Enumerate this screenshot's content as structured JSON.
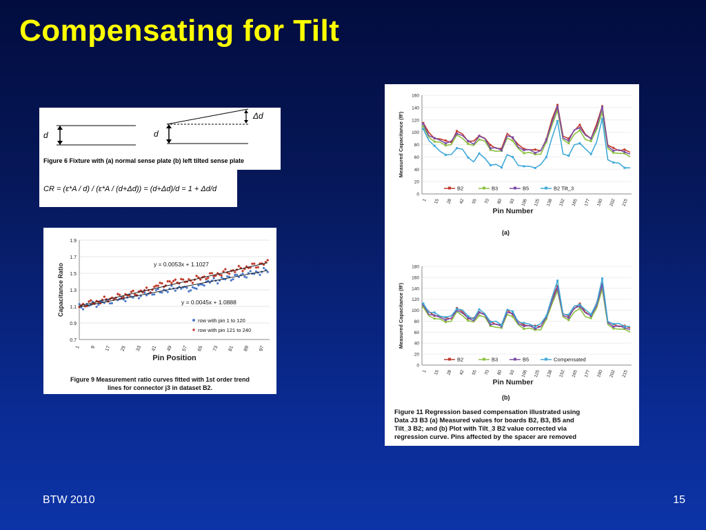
{
  "slide": {
    "title": "Compensating for Tilt",
    "footer_left": "BTW 2010",
    "page_number": "15"
  },
  "figure6": {
    "caption": "Figure 6 Fixture with (a) normal sense plate (b) left tilted sense plate",
    "label_d": "d",
    "label_delta_d": "Δd"
  },
  "formula": {
    "lhs": "CR = (",
    "text": "CR = (ε*A / d) / (ε*A / (d+Δd)) = (d+Δd)/d = 1 + Δd/d"
  },
  "figure9": {
    "caption_line1": "Figure 9 Measurement ratio curves fitted with 1st order trend",
    "caption_line2": "lines for connector j3 in dataset B2.",
    "eq1": "y = 0.0053x + 1.1027",
    "eq2": "y = 0.0045x + 1.0888"
  },
  "figure11": {
    "label_a": "(a)",
    "label_b": "(b)",
    "caption_lines": [
      "Figure 11 Regression based compensation illustrated using",
      "Data J3 B3 (a) Measured values for boards B2, B3, B5 and",
      "Tilt_3 B2;  and (b) Plot with Tilt_3 B2 value corrected via",
      "regression curve.  Pins affected by the spacer are removed"
    ]
  },
  "chart_data": [
    {
      "id": "ratio",
      "type": "scatter",
      "title": "",
      "xlabel": "Pin Position",
      "ylabel": "Capacitance Ratio",
      "ylim": [
        0.7,
        1.9
      ],
      "yticks": [
        "0.7",
        "0.9",
        "1.1",
        "1.3",
        "1.5",
        "1.7",
        "1.9"
      ],
      "xticks": [
        "1",
        "9",
        "17",
        "25",
        "33",
        "41",
        "49",
        "57",
        "65",
        "73",
        "81",
        "89",
        "97"
      ],
      "xlim": [
        1,
        100
      ],
      "legend": "bottom-right",
      "series": [
        {
          "name": "row with pin 1 to 120",
          "color": "#4a78c8",
          "slope": 0.0045,
          "intercept": 1.0888
        },
        {
          "name": "row with pin 121 to 240",
          "color": "#c0392b",
          "slope": 0.0053,
          "intercept": 1.1027
        }
      ]
    },
    {
      "id": "measured_a",
      "type": "line",
      "xlabel": "Pin Number",
      "ylabel": "Measured Capacitance (fF)",
      "ylim": [
        0,
        160
      ],
      "yticks": [
        "0",
        "20",
        "40",
        "60",
        "80",
        "100",
        "120",
        "140",
        "160"
      ],
      "xticks": [
        "1",
        "15",
        "28",
        "42",
        "55",
        "70",
        "80",
        "93",
        "106",
        "125",
        "138",
        "152",
        "165",
        "177",
        "190",
        "202",
        "215"
      ],
      "legend": "bottom",
      "series": [
        {
          "name": "B2",
          "color": "#c0392b",
          "base": [
            115,
            98,
            92,
            88,
            86,
            85,
            100,
            98,
            86,
            84,
            96,
            90,
            78,
            76,
            72,
            98,
            92,
            78,
            74,
            72,
            70,
            72,
            88,
            120,
            146,
            92,
            90,
            104,
            110,
            98,
            90,
            112,
            144,
            78,
            74,
            72,
            70,
            68
          ]
        },
        {
          "name": "B3",
          "color": "#8cbf3f",
          "base": [
            108,
            92,
            86,
            82,
            80,
            80,
            94,
            92,
            80,
            78,
            90,
            84,
            72,
            70,
            68,
            92,
            86,
            72,
            68,
            66,
            64,
            66,
            82,
            112,
            136,
            86,
            84,
            96,
            102,
            90,
            84,
            104,
            134,
            72,
            68,
            66,
            64,
            62
          ]
        },
        {
          "name": "B5",
          "color": "#7b4fa8",
          "base": [
            112,
            96,
            90,
            86,
            84,
            84,
            98,
            96,
            84,
            82,
            94,
            88,
            76,
            74,
            70,
            96,
            90,
            76,
            72,
            70,
            68,
            70,
            86,
            118,
            140,
            90,
            88,
            102,
            108,
            96,
            88,
            110,
            140,
            76,
            72,
            70,
            68,
            66
          ]
        },
        {
          "name": "B2 Tilt_3",
          "color": "#3fa9d8",
          "base": [
            105,
            88,
            76,
            70,
            64,
            62,
            76,
            72,
            58,
            54,
            64,
            58,
            48,
            46,
            44,
            64,
            58,
            48,
            44,
            44,
            44,
            46,
            60,
            92,
            116,
            66,
            62,
            78,
            84,
            72,
            64,
            86,
            120,
            56,
            52,
            48,
            44,
            42
          ]
        }
      ]
    },
    {
      "id": "measured_b",
      "type": "line",
      "xlabel": "Pin Number",
      "ylabel": "Measured Capacitance (fF)",
      "ylim": [
        0,
        180
      ],
      "yticks": [
        "0",
        "20",
        "40",
        "60",
        "80",
        "100",
        "120",
        "140",
        "160",
        "180"
      ],
      "xticks": [
        "1",
        "15",
        "28",
        "42",
        "55",
        "70",
        "80",
        "93",
        "106",
        "125",
        "138",
        "152",
        "165",
        "177",
        "190",
        "202",
        "215"
      ],
      "legend": "bottom",
      "series": [
        {
          "name": "B2",
          "color": "#c0392b",
          "base": [
            110,
            96,
            92,
            88,
            86,
            86,
            102,
            98,
            86,
            84,
            98,
            92,
            78,
            76,
            72,
            100,
            94,
            78,
            74,
            72,
            70,
            72,
            88,
            120,
            146,
            92,
            90,
            104,
            110,
            98,
            90,
            112,
            150,
            78,
            74,
            72,
            70,
            68
          ]
        },
        {
          "name": "B3",
          "color": "#8cbf3f",
          "base": [
            104,
            90,
            86,
            82,
            80,
            80,
            96,
            92,
            80,
            78,
            92,
            86,
            72,
            70,
            66,
            94,
            88,
            72,
            68,
            66,
            64,
            66,
            82,
            112,
            136,
            86,
            84,
            96,
            102,
            90,
            84,
            104,
            140,
            72,
            68,
            66,
            64,
            62
          ]
        },
        {
          "name": "B5",
          "color": "#7b4fa8",
          "base": [
            108,
            94,
            90,
            86,
            84,
            84,
            100,
            96,
            84,
            82,
            96,
            90,
            76,
            74,
            70,
            98,
            92,
            76,
            72,
            70,
            68,
            70,
            86,
            118,
            140,
            90,
            88,
            102,
            108,
            96,
            88,
            110,
            146,
            76,
            72,
            70,
            68,
            66
          ]
        },
        {
          "name": "Compensated",
          "color": "#3fa9d8",
          "base": [
            112,
            98,
            94,
            90,
            88,
            88,
            104,
            100,
            88,
            86,
            100,
            94,
            80,
            78,
            74,
            102,
            96,
            80,
            76,
            74,
            72,
            74,
            90,
            124,
            152,
            94,
            92,
            106,
            112,
            100,
            92,
            114,
            156,
            80,
            76,
            74,
            72,
            70
          ]
        }
      ]
    }
  ]
}
